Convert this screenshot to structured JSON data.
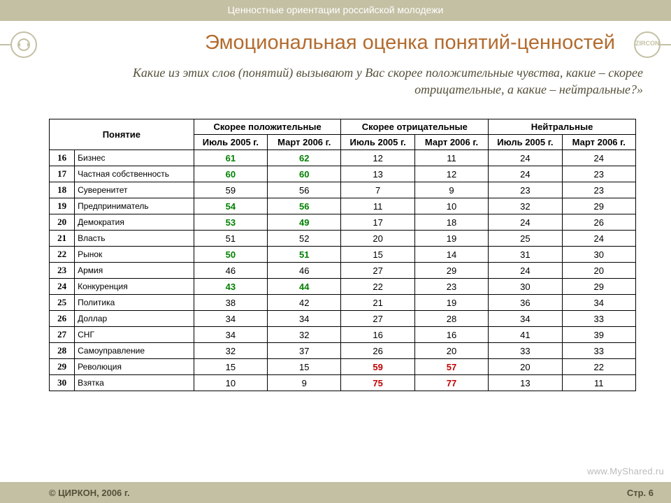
{
  "header": {
    "running_title": "Ценностные ориентации российской молодежи"
  },
  "footer": {
    "left": "© ЦИРКОН, 2006 г.",
    "right": "Стр. 6"
  },
  "logo": {
    "right_text": "ZIRCON"
  },
  "title": "Эмоциональная оценка понятий-ценностей",
  "subtitle": "Какие из этих слов (понятий) вызывают у Вас скорее положительные чувства, какие – скорее отрицательные, а какие – нейтральные?»",
  "watermark": "www.MyShared.ru",
  "table": {
    "head": {
      "concept": "Понятие",
      "groups": [
        "Скорее положительные",
        "Скорее отрицательные",
        "Нейтральные"
      ],
      "sub": [
        "Июль 2005 г.",
        "Март 2006 г."
      ]
    },
    "colors": {
      "green": "#008000",
      "red": "#c00000",
      "normal": "#000000"
    },
    "rows": [
      {
        "n": 16,
        "name": "Бизнес",
        "v": [
          [
            "61",
            "g"
          ],
          [
            "62",
            "g"
          ],
          [
            "12",
            ""
          ],
          [
            "11",
            ""
          ],
          [
            "24",
            ""
          ],
          [
            "24",
            ""
          ]
        ]
      },
      {
        "n": 17,
        "name": "Частная собственность",
        "v": [
          [
            "60",
            "g"
          ],
          [
            "60",
            "g"
          ],
          [
            "13",
            ""
          ],
          [
            "12",
            ""
          ],
          [
            "24",
            ""
          ],
          [
            "23",
            ""
          ]
        ]
      },
      {
        "n": 18,
        "name": "Суверенитет",
        "v": [
          [
            "59",
            ""
          ],
          [
            "56",
            ""
          ],
          [
            "7",
            ""
          ],
          [
            "9",
            ""
          ],
          [
            "23",
            ""
          ],
          [
            "23",
            ""
          ]
        ]
      },
      {
        "n": 19,
        "name": "Предприниматель",
        "v": [
          [
            "54",
            "g"
          ],
          [
            "56",
            "g"
          ],
          [
            "11",
            ""
          ],
          [
            "10",
            ""
          ],
          [
            "32",
            ""
          ],
          [
            "29",
            ""
          ]
        ]
      },
      {
        "n": 20,
        "name": "Демократия",
        "v": [
          [
            "53",
            "g"
          ],
          [
            "49",
            "g"
          ],
          [
            "17",
            ""
          ],
          [
            "18",
            ""
          ],
          [
            "24",
            ""
          ],
          [
            "26",
            ""
          ]
        ]
      },
      {
        "n": 21,
        "name": "Власть",
        "v": [
          [
            "51",
            ""
          ],
          [
            "52",
            ""
          ],
          [
            "20",
            ""
          ],
          [
            "19",
            ""
          ],
          [
            "25",
            ""
          ],
          [
            "24",
            ""
          ]
        ]
      },
      {
        "n": 22,
        "name": "Рынок",
        "v": [
          [
            "50",
            "g"
          ],
          [
            "51",
            "g"
          ],
          [
            "15",
            ""
          ],
          [
            "14",
            ""
          ],
          [
            "31",
            ""
          ],
          [
            "30",
            ""
          ]
        ]
      },
      {
        "n": 23,
        "name": "Армия",
        "v": [
          [
            "46",
            ""
          ],
          [
            "46",
            ""
          ],
          [
            "27",
            ""
          ],
          [
            "29",
            ""
          ],
          [
            "24",
            ""
          ],
          [
            "20",
            ""
          ]
        ]
      },
      {
        "n": 24,
        "name": "Конкуренция",
        "v": [
          [
            "43",
            "g"
          ],
          [
            "44",
            "g"
          ],
          [
            "22",
            ""
          ],
          [
            "23",
            ""
          ],
          [
            "30",
            ""
          ],
          [
            "29",
            ""
          ]
        ]
      },
      {
        "n": 25,
        "name": "Политика",
        "v": [
          [
            "38",
            ""
          ],
          [
            "42",
            ""
          ],
          [
            "21",
            ""
          ],
          [
            "19",
            ""
          ],
          [
            "36",
            ""
          ],
          [
            "34",
            ""
          ]
        ]
      },
      {
        "n": 26,
        "name": "Доллар",
        "v": [
          [
            "34",
            ""
          ],
          [
            "34",
            ""
          ],
          [
            "27",
            ""
          ],
          [
            "28",
            ""
          ],
          [
            "34",
            ""
          ],
          [
            "33",
            ""
          ]
        ]
      },
      {
        "n": 27,
        "name": "СНГ",
        "v": [
          [
            "34",
            ""
          ],
          [
            "32",
            ""
          ],
          [
            "16",
            ""
          ],
          [
            "16",
            ""
          ],
          [
            "41",
            ""
          ],
          [
            "39",
            ""
          ]
        ]
      },
      {
        "n": 28,
        "name": "Самоуправление",
        "v": [
          [
            "32",
            ""
          ],
          [
            "37",
            ""
          ],
          [
            "26",
            ""
          ],
          [
            "20",
            ""
          ],
          [
            "33",
            ""
          ],
          [
            "33",
            ""
          ]
        ]
      },
      {
        "n": 29,
        "name": "Революция",
        "v": [
          [
            "15",
            ""
          ],
          [
            "15",
            ""
          ],
          [
            "59",
            "r"
          ],
          [
            "57",
            "r"
          ],
          [
            "20",
            ""
          ],
          [
            "22",
            ""
          ]
        ]
      },
      {
        "n": 30,
        "name": "Взятка",
        "v": [
          [
            "10",
            ""
          ],
          [
            "9",
            ""
          ],
          [
            "75",
            "r"
          ],
          [
            "77",
            "r"
          ],
          [
            "13",
            ""
          ],
          [
            "11",
            ""
          ]
        ]
      }
    ]
  }
}
